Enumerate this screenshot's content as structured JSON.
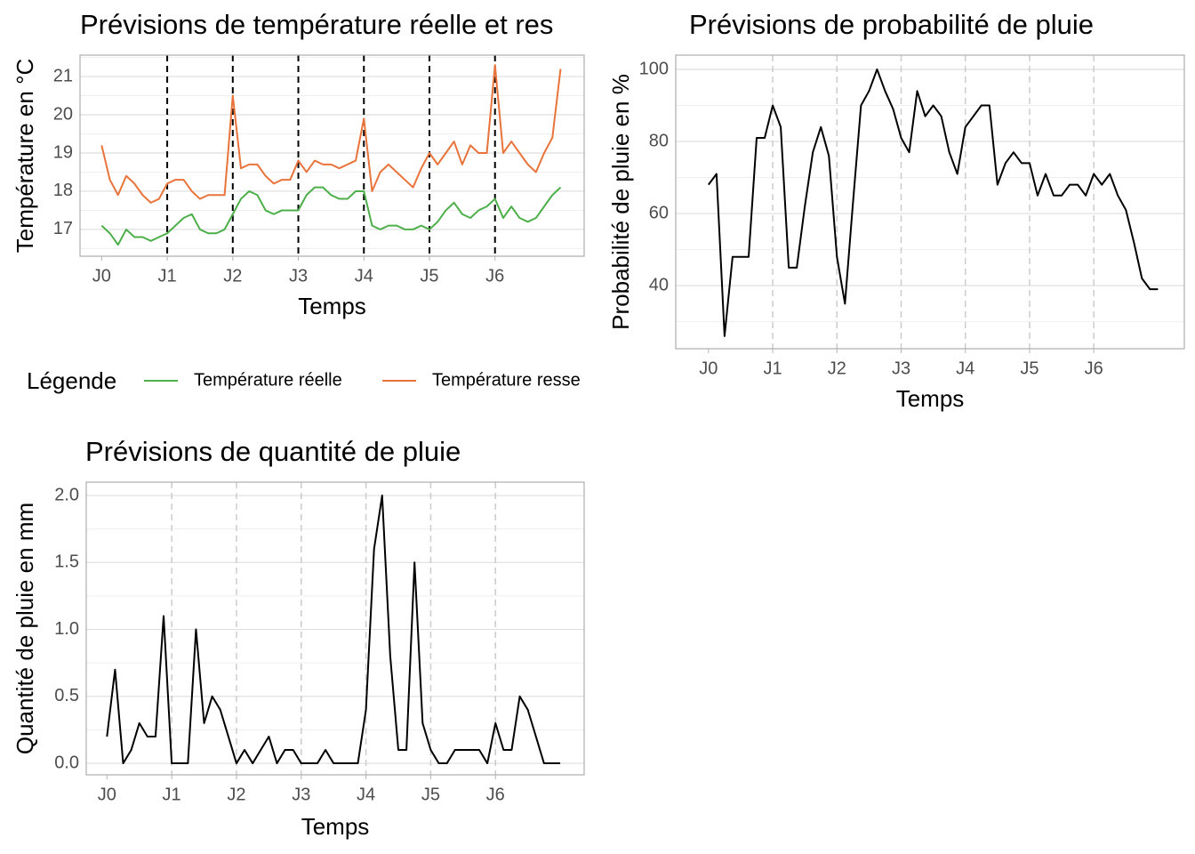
{
  "chart_data": [
    {
      "type": "line",
      "title": "Prévisions de température réelle et res",
      "x_label": "Temps",
      "y_label": "Température en °C",
      "x": [
        0,
        0.125,
        0.25,
        0.375,
        0.5,
        0.625,
        0.75,
        0.875,
        1,
        1.125,
        1.25,
        1.375,
        1.5,
        1.625,
        1.75,
        1.875,
        2,
        2.125,
        2.25,
        2.375,
        2.5,
        2.625,
        2.75,
        2.875,
        3,
        3.125,
        3.25,
        3.375,
        3.5,
        3.625,
        3.75,
        3.875,
        4,
        4.125,
        4.25,
        4.375,
        4.5,
        4.625,
        4.75,
        4.875,
        5,
        5.125,
        5.25,
        5.375,
        5.5,
        5.625,
        5.75,
        5.875,
        6,
        6.125,
        6.25,
        6.375,
        6.5,
        6.625,
        6.75,
        6.875,
        7
      ],
      "series": [
        {
          "name": "Température réelle",
          "color": "#4daf4a",
          "values": [
            17.1,
            16.9,
            16.6,
            17.0,
            16.8,
            16.8,
            16.7,
            16.8,
            16.9,
            17.1,
            17.3,
            17.4,
            17.0,
            16.9,
            16.9,
            17.0,
            17.4,
            17.8,
            18.0,
            17.9,
            17.5,
            17.4,
            17.5,
            17.5,
            17.5,
            17.9,
            18.1,
            18.1,
            17.9,
            17.8,
            17.8,
            18.0,
            18.0,
            17.1,
            17.0,
            17.1,
            17.1,
            17.0,
            17.0,
            17.1,
            17.0,
            17.2,
            17.5,
            17.7,
            17.4,
            17.3,
            17.5,
            17.6,
            17.8,
            17.3,
            17.6,
            17.3,
            17.2,
            17.3,
            17.6,
            17.9,
            18.1
          ]
        },
        {
          "name": "Température resse",
          "color": "#e8743b",
          "values": [
            19.2,
            18.3,
            17.9,
            18.4,
            18.2,
            17.9,
            17.7,
            17.8,
            18.2,
            18.3,
            18.3,
            18.0,
            17.8,
            17.9,
            17.9,
            17.9,
            20.5,
            18.6,
            18.7,
            18.7,
            18.4,
            18.2,
            18.3,
            18.3,
            18.8,
            18.5,
            18.8,
            18.7,
            18.7,
            18.6,
            18.7,
            18.8,
            19.9,
            18.0,
            18.5,
            18.7,
            18.5,
            18.3,
            18.1,
            18.6,
            19.0,
            18.7,
            19.0,
            19.3,
            18.7,
            19.2,
            19.0,
            19.0,
            21.3,
            19.0,
            19.3,
            19.0,
            18.7,
            18.5,
            19.0,
            19.4,
            21.2
          ]
        }
      ],
      "xlim": [
        -0.33,
        7.36
      ],
      "xticks": [
        {
          "value": 0,
          "label": "J0"
        },
        {
          "value": 1,
          "label": "J1"
        },
        {
          "value": 2,
          "label": "J2"
        },
        {
          "value": 3,
          "label": "J3"
        },
        {
          "value": 4,
          "label": "J4"
        },
        {
          "value": 5,
          "label": "J5"
        },
        {
          "value": 6,
          "label": "J6"
        }
      ],
      "ylim": [
        16.3,
        21.56
      ],
      "yticks": [
        17,
        18,
        19,
        20,
        21
      ],
      "grid": true,
      "vlines": [
        1,
        2,
        3,
        4,
        5,
        6
      ],
      "vline_color": "#000000",
      "legend": "bottom",
      "legend_title": "Légende"
    },
    {
      "type": "line",
      "title": "Prévisions de probabilité de pluie",
      "x_label": "Temps",
      "y_label": "Probabilité de pluie en %",
      "x": [
        0,
        0.125,
        0.25,
        0.375,
        0.5,
        0.625,
        0.75,
        0.875,
        1,
        1.125,
        1.25,
        1.375,
        1.5,
        1.625,
        1.75,
        1.875,
        2,
        2.125,
        2.25,
        2.375,
        2.5,
        2.625,
        2.75,
        2.875,
        3,
        3.125,
        3.25,
        3.375,
        3.5,
        3.625,
        3.75,
        3.875,
        4,
        4.125,
        4.25,
        4.375,
        4.5,
        4.625,
        4.75,
        4.875,
        5,
        5.125,
        5.25,
        5.375,
        5.5,
        5.625,
        5.75,
        5.875,
        6,
        6.125,
        6.25,
        6.375,
        6.5,
        6.625,
        6.75,
        6.875,
        7
      ],
      "values": [
        68,
        71,
        26,
        48,
        48,
        48,
        81,
        81,
        90,
        84,
        45,
        45,
        62,
        77,
        84,
        76,
        48,
        35,
        63,
        90,
        94,
        100,
        94,
        89,
        81,
        77,
        94,
        87,
        90,
        87,
        77,
        71,
        84,
        87,
        90,
        90,
        68,
        74,
        77,
        74,
        74,
        65,
        71,
        65,
        65,
        68,
        68,
        65,
        71,
        68,
        71,
        65,
        61,
        52,
        42,
        39,
        39
      ],
      "color": "#000000",
      "xlim": [
        -0.51,
        7.41
      ],
      "xticks": [
        {
          "value": 0,
          "label": "J0"
        },
        {
          "value": 1,
          "label": "J1"
        },
        {
          "value": 2,
          "label": "J2"
        },
        {
          "value": 3,
          "label": "J3"
        },
        {
          "value": 4,
          "label": "J4"
        },
        {
          "value": 5,
          "label": "J5"
        },
        {
          "value": 6,
          "label": "J6"
        }
      ],
      "ylim": [
        22.5,
        103.95
      ],
      "yticks": [
        40,
        60,
        80,
        100
      ],
      "grid": true,
      "vlines": [
        1,
        2,
        3,
        4,
        5,
        6
      ],
      "vline_color": "#cccccc"
    },
    {
      "type": "line",
      "title": "Prévisions de quantité de pluie",
      "x_label": "Temps",
      "y_label": "Quantité de pluie en mm",
      "x": [
        0,
        0.125,
        0.25,
        0.375,
        0.5,
        0.625,
        0.75,
        0.875,
        1,
        1.125,
        1.25,
        1.375,
        1.5,
        1.625,
        1.75,
        1.875,
        2,
        2.125,
        2.25,
        2.375,
        2.5,
        2.625,
        2.75,
        2.875,
        3,
        3.125,
        3.25,
        3.375,
        3.5,
        3.625,
        3.75,
        3.875,
        4,
        4.125,
        4.25,
        4.375,
        4.5,
        4.625,
        4.75,
        4.875,
        5,
        5.125,
        5.25,
        5.375,
        5.5,
        5.625,
        5.75,
        5.875,
        6,
        6.125,
        6.25,
        6.375,
        6.5,
        6.625,
        6.75,
        6.875,
        7
      ],
      "values": [
        0.2,
        0.7,
        0,
        0.1,
        0.3,
        0.2,
        0.2,
        1.1,
        0,
        0,
        0,
        1.0,
        0.3,
        0.5,
        0.4,
        0.2,
        0,
        0.1,
        0,
        0.1,
        0.2,
        0,
        0.1,
        0.1,
        0,
        0,
        0,
        0.1,
        0,
        0,
        0,
        0,
        0.4,
        1.6,
        2.0,
        0.8,
        0.1,
        0.1,
        1.5,
        0.3,
        0.1,
        0,
        0,
        0.1,
        0.1,
        0.1,
        0.1,
        0,
        0.3,
        0.1,
        0.1,
        0.5,
        0.4,
        0.2,
        0,
        0,
        0
      ],
      "color": "#000000",
      "xlim": [
        -0.32,
        7.37
      ],
      "xticks": [
        {
          "value": 0,
          "label": "J0"
        },
        {
          "value": 1,
          "label": "J1"
        },
        {
          "value": 2,
          "label": "J2"
        },
        {
          "value": 3,
          "label": "J3"
        },
        {
          "value": 4,
          "label": "J4"
        },
        {
          "value": 5,
          "label": "J5"
        },
        {
          "value": 6,
          "label": "J6"
        }
      ],
      "ylim": [
        -0.086,
        2.1
      ],
      "yticks": [
        {
          "value": 0,
          "label": "0.0"
        },
        {
          "value": 0.5,
          "label": "0.5"
        },
        {
          "value": 1,
          "label": "1.0"
        },
        {
          "value": 1.5,
          "label": "1.5"
        },
        {
          "value": 2,
          "label": "2.0"
        }
      ],
      "grid": true,
      "vlines": [
        1,
        2,
        3,
        4,
        5,
        6
      ],
      "vline_color": "#cccccc"
    }
  ]
}
